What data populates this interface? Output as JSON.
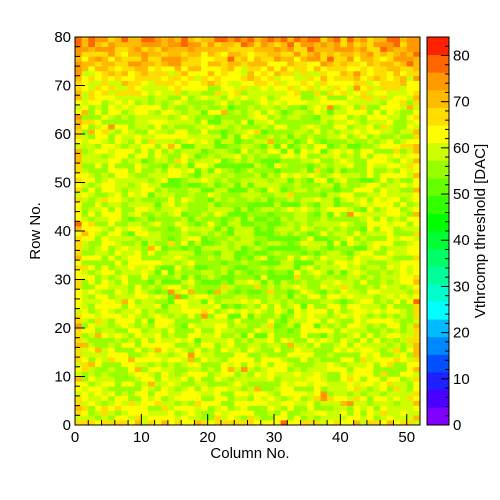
{
  "chart_data": {
    "type": "heatmap",
    "title": "",
    "xlabel": "Column No.",
    "ylabel": "Row No.",
    "zlabel": "Vthrcomp threshold [DAC]",
    "x_range": [
      0,
      52
    ],
    "y_range": [
      0,
      80
    ],
    "z_range": [
      0,
      84
    ],
    "n_columns": 52,
    "n_rows": 80,
    "x_ticks": [
      0,
      10,
      20,
      30,
      40,
      50
    ],
    "y_ticks": [
      0,
      10,
      20,
      30,
      40,
      50,
      60,
      70,
      80
    ],
    "z_ticks": [
      0,
      10,
      20,
      30,
      40,
      50,
      60,
      70,
      80
    ],
    "value_distribution": {
      "typical": 60,
      "center_region_low": 55,
      "edge_high": 68,
      "top_rows_max": 80
    },
    "palette": [
      "#7f00ff",
      "#4a00ff",
      "#1f1fff",
      "#0050ff",
      "#0088ff",
      "#00bbff",
      "#00ffff",
      "#00ffcc",
      "#00ff99",
      "#00ff66",
      "#00ff33",
      "#00ff00",
      "#33ff00",
      "#66ff00",
      "#99ff00",
      "#ccff00",
      "#ffff00",
      "#ffdd00",
      "#ffbb00",
      "#ff9900",
      "#ff6600",
      "#ff2200"
    ]
  }
}
